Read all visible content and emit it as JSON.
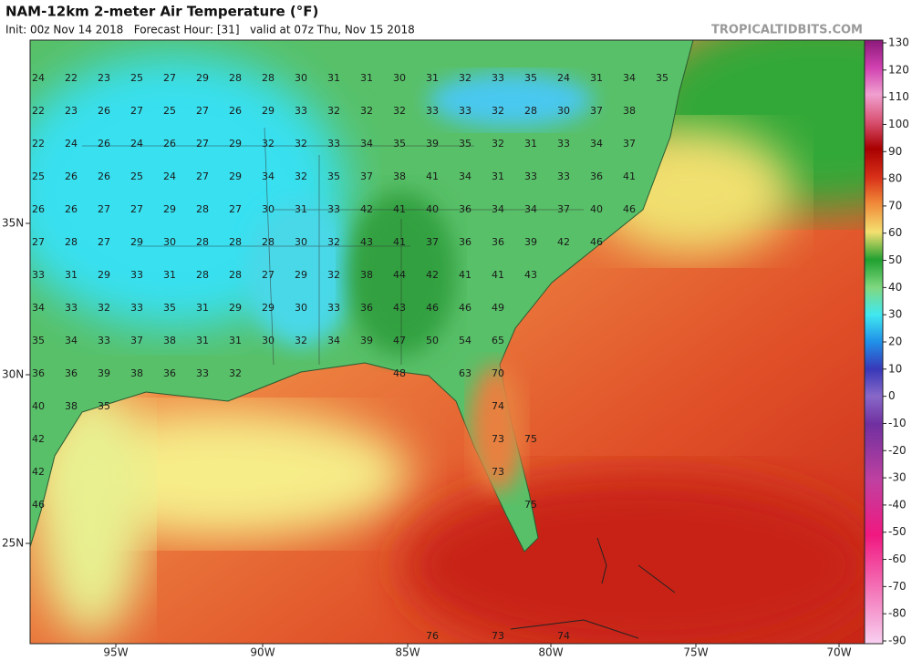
{
  "header": {
    "title": "NAM-12km 2-meter Air Temperature (°F)",
    "subtitle": "Init: 00z Nov 14 2018   Forecast Hour: [31]   valid at 07z Thu, Nov 15 2018",
    "brand": "TROPICALTIDBITS.COM"
  },
  "colorbar": {
    "ticks": [
      130,
      120,
      110,
      100,
      90,
      80,
      70,
      60,
      50,
      40,
      30,
      20,
      10,
      0,
      -10,
      -20,
      -30,
      -40,
      -50,
      -60,
      -70,
      -80,
      -90
    ]
  },
  "lat_labels": [
    "35N",
    "30N",
    "25N"
  ],
  "lon_labels": [
    "95W",
    "90W",
    "85W",
    "80W",
    "75W",
    "70W"
  ],
  "temperatures": {
    "rows": [
      [
        24,
        22,
        23,
        25,
        27,
        29,
        28,
        28,
        30,
        31,
        31,
        30,
        31,
        32,
        33,
        35,
        24,
        31,
        34,
        35
      ],
      [
        22,
        23,
        26,
        27,
        25,
        27,
        26,
        29,
        33,
        32,
        32,
        32,
        33,
        33,
        32,
        28,
        30,
        37,
        38
      ],
      [
        22,
        24,
        26,
        24,
        26,
        27,
        29,
        32,
        32,
        33,
        34,
        35,
        39,
        35,
        32,
        31,
        33,
        34,
        37
      ],
      [
        25,
        26,
        26,
        25,
        24,
        27,
        29,
        34,
        32,
        35,
        37,
        38,
        41,
        34,
        31,
        33,
        33,
        36,
        41
      ],
      [
        26,
        26,
        27,
        27,
        29,
        28,
        27,
        30,
        31,
        33,
        42,
        41,
        40,
        36,
        34,
        34,
        37,
        40,
        46
      ],
      [
        27,
        28,
        27,
        29,
        30,
        28,
        28,
        28,
        30,
        32,
        43,
        41,
        37,
        36,
        36,
        39,
        42,
        46
      ],
      [
        33,
        31,
        29,
        33,
        31,
        28,
        28,
        27,
        29,
        32,
        38,
        44,
        42,
        41,
        41,
        43
      ],
      [
        34,
        33,
        32,
        33,
        35,
        31,
        29,
        29,
        30,
        33,
        36,
        43,
        46,
        46,
        49
      ],
      [
        35,
        34,
        33,
        37,
        38,
        31,
        31,
        30,
        32,
        34,
        39,
        47,
        50,
        54,
        65
      ],
      [
        36,
        36,
        39,
        38,
        36,
        33,
        32,
        null,
        null,
        null,
        null,
        48,
        null,
        63,
        70
      ],
      [
        40,
        38,
        35,
        null,
        null,
        null,
        null,
        null,
        null,
        null,
        null,
        null,
        null,
        null,
        74
      ],
      [
        42,
        null,
        null,
        null,
        null,
        null,
        null,
        null,
        null,
        null,
        null,
        null,
        null,
        null,
        73,
        75
      ],
      [
        42,
        null,
        null,
        null,
        null,
        null,
        null,
        null,
        null,
        null,
        null,
        null,
        null,
        null,
        73
      ],
      [
        46,
        null,
        null,
        null,
        null,
        null,
        null,
        null,
        null,
        null,
        null,
        null,
        null,
        null,
        null,
        75
      ],
      [
        null,
        null,
        null,
        null,
        null,
        null,
        null,
        null,
        null,
        null,
        null,
        null,
        76,
        null,
        73,
        null,
        74
      ]
    ]
  }
}
